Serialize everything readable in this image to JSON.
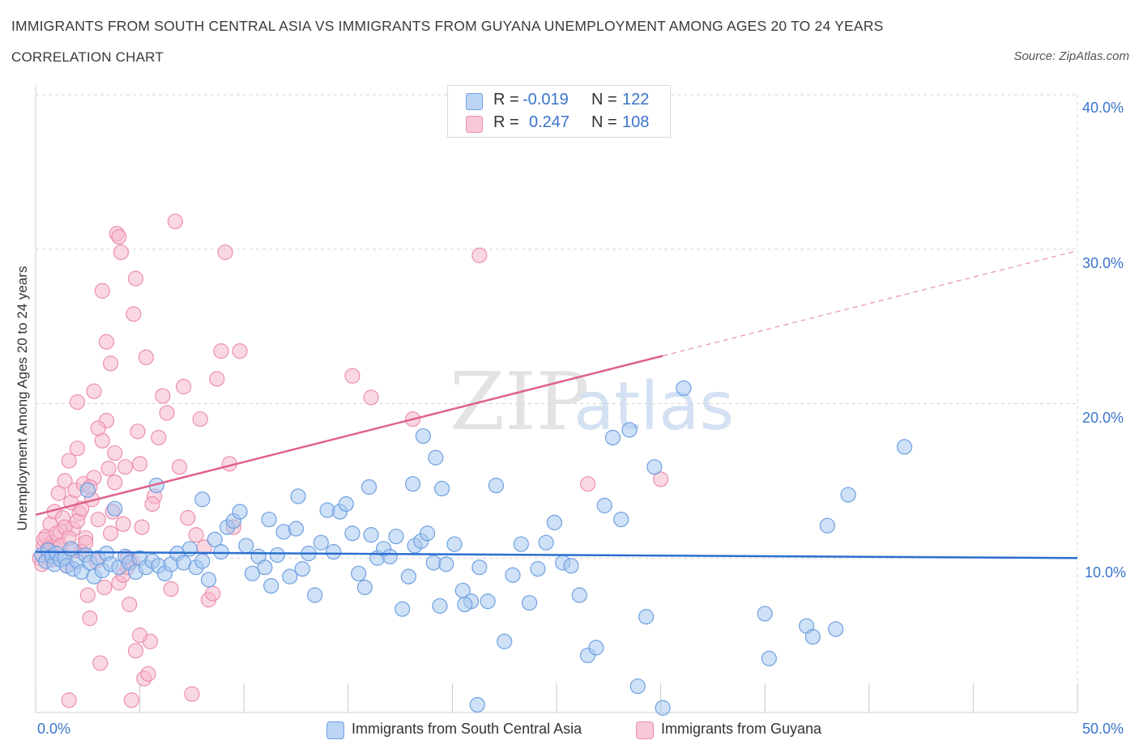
{
  "header": {
    "title": "IMMIGRANTS FROM SOUTH CENTRAL ASIA VS IMMIGRANTS FROM GUYANA UNEMPLOYMENT AMONG AGES 20 TO 24 YEARS",
    "subtitle": "CORRELATION CHART",
    "source": "Source: ZipAtlas.com"
  },
  "legend": {
    "r_label": "R =",
    "n_label": "N =",
    "series": [
      {
        "r": "-0.019",
        "n": "122"
      },
      {
        "r": "0.247",
        "n": "108"
      }
    ]
  },
  "colors": {
    "blue_fill": "#a8c8f0",
    "blue_stroke": "#6fa0e0",
    "blue_line": "#2a6fd0",
    "pink_fill": "#f5b8cb",
    "pink_stroke": "#ec8fae",
    "pink_line": "#e0628c",
    "tick_text": "#3a74cc",
    "grid": "#d5d5d5"
  },
  "chart_data": {
    "type": "scatter",
    "title": "IMMIGRANTS FROM SOUTH CENTRAL ASIA VS IMMIGRANTS FROM GUYANA UNEMPLOYMENT AMONG AGES 20 TO 24 YEARS",
    "subtitle": "CORRELATION CHART",
    "xlabel": "",
    "ylabel": "Unemployment Among Ages 20 to 24 years",
    "xlim": [
      0,
      50
    ],
    "ylim": [
      0,
      40
    ],
    "x_tick_labels": [
      "0.0%",
      "50.0%"
    ],
    "y_tick_labels": [
      "10.0%",
      "20.0%",
      "30.0%",
      "40.0%"
    ],
    "y_ticks": [
      10,
      20,
      30,
      40
    ],
    "grid": true,
    "legend_position": "top-center",
    "series": [
      {
        "name": "Immigrants from South Central Asia",
        "color": "#a8c8f0",
        "trend": {
          "x0": 0,
          "y0": 10.4,
          "x1": 50,
          "y1": 10.0,
          "solid_until": 50
        },
        "points": [
          [
            0.3,
            10.2
          ],
          [
            0.5,
            9.8
          ],
          [
            0.6,
            10.5
          ],
          [
            0.8,
            10.1
          ],
          [
            0.9,
            9.6
          ],
          [
            1.0,
            10.3
          ],
          [
            1.2,
            9.9
          ],
          [
            1.4,
            10.0
          ],
          [
            1.5,
            9.5
          ],
          [
            1.7,
            10.6
          ],
          [
            1.8,
            9.3
          ],
          [
            2.0,
            9.8
          ],
          [
            2.2,
            9.1
          ],
          [
            2.4,
            10.2
          ],
          [
            2.6,
            9.7
          ],
          [
            2.8,
            8.8
          ],
          [
            3.0,
            10.0
          ],
          [
            3.2,
            9.2
          ],
          [
            3.4,
            10.3
          ],
          [
            3.6,
            9.6
          ],
          [
            3.8,
            13.2
          ],
          [
            4.0,
            9.4
          ],
          [
            4.3,
            10.1
          ],
          [
            4.5,
            9.7
          ],
          [
            4.8,
            9.1
          ],
          [
            5.0,
            10.0
          ],
          [
            5.3,
            9.4
          ],
          [
            5.6,
            9.8
          ],
          [
            5.9,
            9.5
          ],
          [
            6.2,
            9.0
          ],
          [
            6.5,
            9.6
          ],
          [
            6.8,
            10.3
          ],
          [
            7.1,
            9.7
          ],
          [
            7.4,
            10.6
          ],
          [
            7.7,
            9.4
          ],
          [
            8.0,
            9.8
          ],
          [
            8.3,
            8.6
          ],
          [
            8.6,
            11.2
          ],
          [
            8.9,
            10.4
          ],
          [
            9.2,
            12.0
          ],
          [
            9.5,
            12.4
          ],
          [
            9.8,
            13.0
          ],
          [
            10.1,
            10.8
          ],
          [
            10.4,
            9.0
          ],
          [
            10.7,
            10.1
          ],
          [
            11.0,
            9.4
          ],
          [
            11.3,
            8.2
          ],
          [
            11.6,
            10.2
          ],
          [
            11.9,
            11.7
          ],
          [
            12.2,
            8.8
          ],
          [
            12.5,
            11.9
          ],
          [
            12.8,
            9.3
          ],
          [
            13.1,
            10.3
          ],
          [
            13.4,
            7.6
          ],
          [
            13.7,
            11.0
          ],
          [
            14.0,
            13.1
          ],
          [
            14.3,
            10.4
          ],
          [
            14.6,
            13.0
          ],
          [
            14.9,
            13.5
          ],
          [
            15.2,
            11.6
          ],
          [
            15.5,
            9.0
          ],
          [
            15.8,
            8.1
          ],
          [
            16.1,
            11.5
          ],
          [
            16.4,
            10.0
          ],
          [
            16.7,
            10.6
          ],
          [
            17.0,
            10.1
          ],
          [
            17.3,
            11.4
          ],
          [
            17.6,
            6.7
          ],
          [
            17.9,
            8.8
          ],
          [
            18.2,
            10.8
          ],
          [
            18.5,
            11.1
          ],
          [
            18.8,
            11.6
          ],
          [
            19.1,
            9.7
          ],
          [
            19.4,
            6.9
          ],
          [
            19.7,
            9.6
          ],
          [
            20.1,
            10.9
          ],
          [
            20.5,
            7.9
          ],
          [
            20.9,
            7.2
          ],
          [
            21.3,
            9.4
          ],
          [
            21.7,
            7.2
          ],
          [
            22.1,
            14.7
          ],
          [
            22.5,
            4.6
          ],
          [
            22.9,
            8.9
          ],
          [
            23.3,
            10.9
          ],
          [
            23.7,
            7.1
          ],
          [
            24.1,
            9.3
          ],
          [
            24.5,
            11.0
          ],
          [
            24.9,
            12.3
          ],
          [
            25.3,
            9.7
          ],
          [
            25.7,
            9.5
          ],
          [
            26.1,
            7.6
          ],
          [
            26.5,
            3.7
          ],
          [
            26.9,
            4.2
          ],
          [
            27.3,
            13.4
          ],
          [
            27.7,
            17.8
          ],
          [
            28.1,
            12.5
          ],
          [
            28.5,
            18.3
          ],
          [
            28.9,
            1.7
          ],
          [
            29.3,
            6.2
          ],
          [
            29.7,
            15.9
          ],
          [
            31.1,
            21.0
          ],
          [
            30.1,
            0.3
          ],
          [
            35.0,
            6.4
          ],
          [
            35.2,
            3.5
          ],
          [
            37.0,
            5.6
          ],
          [
            37.3,
            4.9
          ],
          [
            38.0,
            12.1
          ],
          [
            38.4,
            5.4
          ],
          [
            39.0,
            14.1
          ],
          [
            41.7,
            17.2
          ],
          [
            2.5,
            14.4
          ],
          [
            5.8,
            14.7
          ],
          [
            8.0,
            13.8
          ],
          [
            11.2,
            12.5
          ],
          [
            18.6,
            17.9
          ],
          [
            18.1,
            14.8
          ],
          [
            19.2,
            16.5
          ],
          [
            19.5,
            14.5
          ],
          [
            21.2,
            0.5
          ],
          [
            16.0,
            14.6
          ],
          [
            20.6,
            7.0
          ],
          [
            12.6,
            14.0
          ]
        ]
      },
      {
        "name": "Immigrants from Guyana",
        "color": "#f5b8cb",
        "trend": {
          "x0": 0,
          "y0": 12.8,
          "x1": 50,
          "y1": 29.9,
          "solid_until": 30.1
        },
        "points": [
          [
            0.2,
            10.0
          ],
          [
            0.3,
            9.6
          ],
          [
            0.4,
            10.8
          ],
          [
            0.5,
            11.4
          ],
          [
            0.6,
            10.2
          ],
          [
            0.7,
            12.2
          ],
          [
            0.8,
            11.0
          ],
          [
            0.9,
            13.0
          ],
          [
            1.0,
            10.6
          ],
          [
            1.1,
            14.2
          ],
          [
            1.2,
            11.7
          ],
          [
            1.3,
            12.6
          ],
          [
            1.4,
            15.0
          ],
          [
            1.5,
            9.5
          ],
          [
            1.6,
            16.3
          ],
          [
            1.7,
            13.6
          ],
          [
            1.8,
            11.9
          ],
          [
            1.9,
            14.4
          ],
          [
            2.0,
            17.1
          ],
          [
            2.1,
            12.9
          ],
          [
            2.2,
            10.4
          ],
          [
            2.3,
            14.8
          ],
          [
            2.4,
            11.3
          ],
          [
            2.5,
            7.6
          ],
          [
            2.6,
            6.1
          ],
          [
            2.7,
            13.8
          ],
          [
            2.8,
            15.2
          ],
          [
            2.9,
            9.8
          ],
          [
            3.0,
            12.5
          ],
          [
            3.1,
            3.2
          ],
          [
            3.2,
            17.6
          ],
          [
            3.3,
            8.1
          ],
          [
            3.4,
            18.9
          ],
          [
            3.5,
            15.8
          ],
          [
            3.6,
            11.6
          ],
          [
            3.7,
            13.0
          ],
          [
            3.8,
            14.9
          ],
          [
            3.9,
            31.0
          ],
          [
            4.0,
            30.8
          ],
          [
            4.1,
            29.8
          ],
          [
            4.2,
            12.2
          ],
          [
            4.3,
            15.9
          ],
          [
            4.4,
            10.0
          ],
          [
            4.5,
            7.0
          ],
          [
            4.6,
            9.8
          ],
          [
            4.7,
            25.8
          ],
          [
            4.8,
            28.1
          ],
          [
            4.9,
            18.2
          ],
          [
            5.0,
            16.1
          ],
          [
            5.1,
            12.0
          ],
          [
            5.3,
            23.0
          ],
          [
            5.5,
            4.6
          ],
          [
            5.7,
            14.0
          ],
          [
            5.9,
            17.8
          ],
          [
            6.1,
            20.5
          ],
          [
            6.3,
            19.4
          ],
          [
            6.5,
            8.0
          ],
          [
            6.7,
            31.8
          ],
          [
            6.9,
            15.9
          ],
          [
            7.1,
            21.1
          ],
          [
            7.3,
            12.6
          ],
          [
            7.5,
            1.2
          ],
          [
            7.7,
            11.5
          ],
          [
            7.9,
            19.0
          ],
          [
            8.1,
            10.7
          ],
          [
            8.3,
            7.3
          ],
          [
            8.5,
            7.7
          ],
          [
            8.7,
            21.6
          ],
          [
            8.9,
            23.4
          ],
          [
            9.1,
            29.8
          ],
          [
            9.3,
            16.1
          ],
          [
            9.5,
            12.0
          ],
          [
            9.8,
            23.4
          ],
          [
            15.2,
            21.8
          ],
          [
            16.1,
            20.4
          ],
          [
            18.1,
            19.0
          ],
          [
            21.3,
            29.6
          ],
          [
            26.5,
            14.8
          ],
          [
            30.0,
            15.1
          ],
          [
            0.4,
            11.2
          ],
          [
            0.6,
            10.6
          ],
          [
            0.8,
            9.9
          ],
          [
            1.0,
            11.6
          ],
          [
            1.2,
            10.8
          ],
          [
            1.4,
            12.0
          ],
          [
            1.6,
            11.3
          ],
          [
            1.8,
            10.5
          ],
          [
            2.0,
            12.4
          ],
          [
            2.2,
            13.2
          ],
          [
            2.4,
            11.0
          ],
          [
            2.6,
            14.6
          ],
          [
            2.8,
            20.8
          ],
          [
            3.0,
            18.4
          ],
          [
            3.2,
            27.3
          ],
          [
            3.4,
            24.0
          ],
          [
            3.6,
            22.6
          ],
          [
            3.8,
            16.8
          ],
          [
            4.0,
            8.4
          ],
          [
            4.2,
            8.9
          ],
          [
            4.4,
            9.4
          ],
          [
            4.6,
            0.8
          ],
          [
            4.8,
            4.0
          ],
          [
            5.0,
            5.0
          ],
          [
            5.2,
            2.2
          ],
          [
            5.4,
            2.5
          ],
          [
            5.6,
            13.5
          ],
          [
            2.0,
            20.1
          ],
          [
            1.6,
            0.8
          ]
        ]
      }
    ]
  }
}
